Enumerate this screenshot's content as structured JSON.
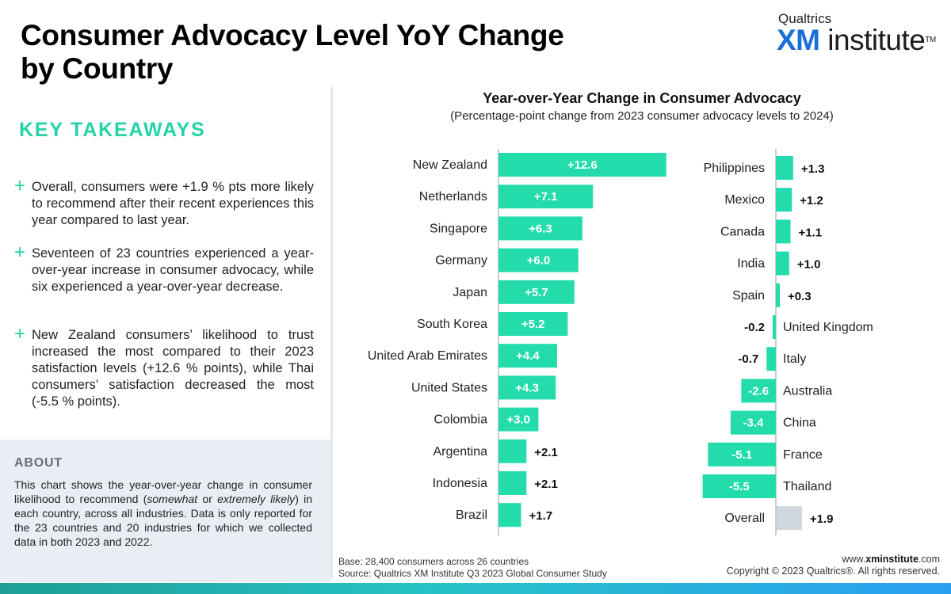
{
  "header": {
    "title_line1": "Consumer Advocacy Level YoY Change",
    "title_line2": "by Country"
  },
  "logo": {
    "company": "Qualtrics",
    "xm": "XM",
    "institute": "institute",
    "tm": "TM"
  },
  "takeaways": {
    "heading": "KEY TAKEAWAYS",
    "plus_symbol": "+",
    "items": [
      "Overall, consumers were +1.9 % pts more likely to recommend after their recent experiences this year compared to last year.",
      "Seventeen of 23 countries experienced a year-over-year increase in consumer advocacy, while six experienced a year-over-year decrease.",
      "New Zealand consumers’ likelihood to trust increased the most compared to their 2023 satisfaction levels (+12.6 % points), while Thai consumers’ satisfaction decreased the most (-5.5 % points)."
    ]
  },
  "about": {
    "heading": "ABOUT",
    "text_part1": "This chart shows the year-over-year change in consumer likelihood to recommend (",
    "text_em1": "somewhat",
    "text_part2": " or ",
    "text_em2": "extremely likely",
    "text_part3": ") in each country, across all industries. Data is only reported for the 23 countries and 20 industries for which we collected data in both 2023 and 2022."
  },
  "chart_data": {
    "type": "bar",
    "orientation": "horizontal",
    "title": "Year-over-Year Change in Consumer Advocacy",
    "subtitle": "(Percentage-point change from 2023 consumer advocacy levels to 2024)",
    "units": "percentage points",
    "colors": {
      "bar": "#24dcab",
      "overall": "#cfd6dc",
      "axis": "#c8cdd2"
    },
    "panels": [
      {
        "series": [
          {
            "category": "New Zealand",
            "value": 12.6,
            "label": "+12.6"
          },
          {
            "category": "Netherlands",
            "value": 7.1,
            "label": "+7.1"
          },
          {
            "category": "Singapore",
            "value": 6.3,
            "label": "+6.3"
          },
          {
            "category": "Germany",
            "value": 6.0,
            "label": "+6.0"
          },
          {
            "category": "Japan",
            "value": 5.7,
            "label": "+5.7"
          },
          {
            "category": "South Korea",
            "value": 5.2,
            "label": "+5.2"
          },
          {
            "category": "United Arab Emirates",
            "value": 4.4,
            "label": "+4.4"
          },
          {
            "category": "United States",
            "value": 4.3,
            "label": "+4.3"
          },
          {
            "category": "Colombia",
            "value": 3.0,
            "label": "+3.0"
          },
          {
            "category": "Argentina",
            "value": 2.1,
            "label": "+2.1"
          },
          {
            "category": "Indonesia",
            "value": 2.1,
            "label": "+2.1"
          },
          {
            "category": "Brazil",
            "value": 1.7,
            "label": "+1.7"
          }
        ]
      },
      {
        "series": [
          {
            "category": "Philippines",
            "value": 1.3,
            "label": "+1.3"
          },
          {
            "category": "Mexico",
            "value": 1.2,
            "label": "+1.2"
          },
          {
            "category": "Canada",
            "value": 1.1,
            "label": "+1.1"
          },
          {
            "category": "India",
            "value": 1.0,
            "label": "+1.0"
          },
          {
            "category": "Spain",
            "value": 0.3,
            "label": "+0.3"
          },
          {
            "category": "United Kingdom",
            "value": -0.2,
            "label": "-0.2"
          },
          {
            "category": "Italy",
            "value": -0.7,
            "label": "-0.7"
          },
          {
            "category": "Australia",
            "value": -2.6,
            "label": "-2.6"
          },
          {
            "category": "China",
            "value": -3.4,
            "label": "-3.4"
          },
          {
            "category": "France",
            "value": -5.1,
            "label": "-5.1"
          },
          {
            "category": "Thailand",
            "value": -5.5,
            "label": "-5.5"
          },
          {
            "category": "Overall",
            "value": 1.9,
            "label": "+1.9",
            "highlight": true
          }
        ]
      }
    ]
  },
  "footer": {
    "base": "Base: 28,400 consumers across 26 countries",
    "source": "Source: Qualtrics XM Institute Q3 2023 Global Consumer Study",
    "url_prefix": "www.",
    "url_domain": "xminstitute",
    "url_suffix": ".com",
    "copyright": "Copyright © 2023 Qualtrics®. All rights reserved."
  }
}
